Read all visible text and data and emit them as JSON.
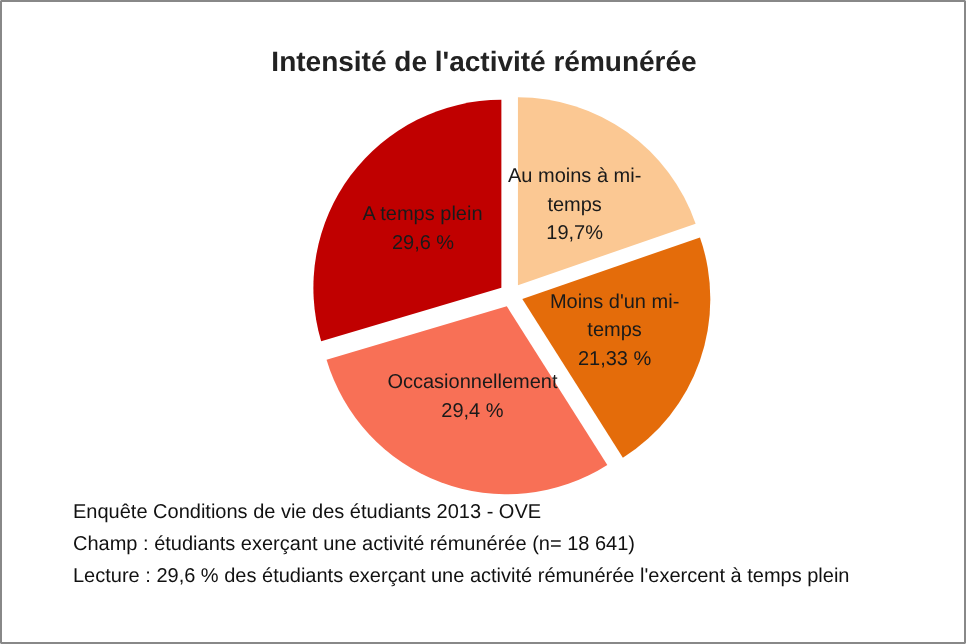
{
  "chart_data": {
    "type": "pie",
    "title": "Intensité de l'activité rémunérée",
    "categories": [
      "Au moins à mi-temps",
      "Moins d'un mi-temps",
      "Occasionnellement",
      "A temps plein"
    ],
    "values": [
      19.7,
      21.33,
      29.4,
      29.6
    ],
    "value_labels": [
      "19,7%",
      "21,33 %",
      "29,4 %",
      "29,6 %"
    ],
    "colors": [
      "#fbc893",
      "#e46c0a",
      "#f87056",
      "#c00000"
    ],
    "annotations": [
      "Enquête Conditions de vie des étudiants 2013 - OVE",
      "Champ : étudiants exerçant une activité rémunérée (n= 18 641)",
      "Lecture : 29,6 % des étudiants  exerçant une activité rémunérée l'exercent à temps plein"
    ]
  }
}
